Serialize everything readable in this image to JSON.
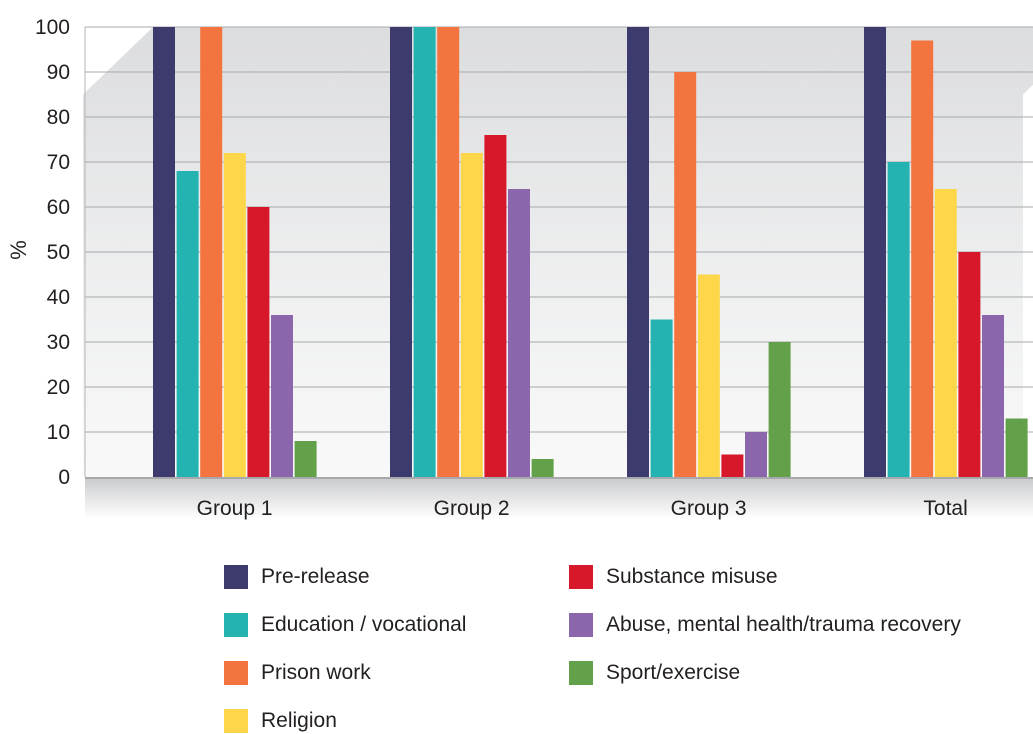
{
  "chart_data": {
    "type": "bar",
    "categories": [
      "Group 1",
      "Group 2",
      "Group 3",
      "Total"
    ],
    "series": [
      {
        "name": "Pre-release",
        "values": [
          100,
          100,
          100,
          100
        ],
        "color": "#3d3b6e"
      },
      {
        "name": "Education / vocational",
        "values": [
          68,
          100,
          35,
          70
        ],
        "color": "#24b3b1"
      },
      {
        "name": "Prison work",
        "values": [
          100,
          100,
          90,
          97
        ],
        "color": "#f47440"
      },
      {
        "name": "Religion",
        "values": [
          72,
          72,
          45,
          64
        ],
        "color": "#fdd64a"
      },
      {
        "name": "Substance misuse",
        "values": [
          60,
          76,
          5,
          50
        ],
        "color": "#d7182a"
      },
      {
        "name": "Abuse, mental health/trauma recovery",
        "values": [
          36,
          64,
          10,
          36
        ],
        "color": "#8b66ac"
      },
      {
        "name": "Sport/exercise",
        "values": [
          8,
          4,
          30,
          13
        ],
        "color": "#62a04a"
      }
    ],
    "ylabel": "%",
    "xlabel": "",
    "title": "",
    "ylim": [
      0,
      100
    ],
    "yticks": [
      0,
      10,
      20,
      30,
      40,
      50,
      60,
      70,
      80,
      90,
      100
    ],
    "grid": true,
    "legend_position": "bottom"
  }
}
